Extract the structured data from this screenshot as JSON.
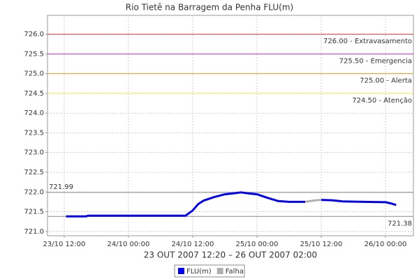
{
  "chart_data": {
    "type": "line",
    "title": "Rio Tietê na Barragem da Penha FLU(m)",
    "x_label": "23 OUT 2007 12:20 – 26 OUT 2007 02:00",
    "x": [
      "23/10 12:20",
      "23/10 16:00",
      "23/10 16:30",
      "24/10 00:00",
      "24/10 08:00",
      "24/10 10:40",
      "24/10 12:00",
      "24/10 13:00",
      "24/10 14:00",
      "24/10 16:00",
      "24/10 18:00",
      "24/10 20:00",
      "24/10 21:00",
      "24/10 22:00",
      "25/10 00:00",
      "25/10 02:00",
      "25/10 04:00",
      "25/10 06:00",
      "25/10 09:00",
      "25/10 11:00",
      "25/10 12:00",
      "25/10 14:00",
      "25/10 16:00",
      "25/10 20:00",
      "26/10 00:00",
      "26/10 01:00",
      "26/10 02:00"
    ],
    "series": [
      {
        "name": "FLU(m)",
        "color": "#0000ee",
        "values": [
          721.38,
          721.38,
          721.4,
          721.4,
          721.4,
          721.4,
          721.53,
          721.69,
          721.78,
          721.87,
          721.94,
          721.97,
          721.99,
          721.97,
          721.94,
          721.85,
          721.77,
          721.75,
          721.75,
          null,
          721.8,
          721.79,
          721.76,
          721.75,
          721.74,
          721.71,
          721.67
        ]
      },
      {
        "name": "Falha",
        "color": "#b0b0b0",
        "values": [
          null,
          null,
          null,
          null,
          null,
          null,
          null,
          null,
          null,
          null,
          null,
          null,
          null,
          null,
          null,
          null,
          null,
          null,
          721.75,
          721.79,
          721.8,
          null,
          null,
          null,
          null,
          null,
          null
        ]
      }
    ],
    "xlim": [
      "23/10 08:53",
      "26/10 05:13"
    ],
    "xticks": [
      "23/10 12:00",
      "24/10 00:00",
      "24/10 12:00",
      "25/10 00:00",
      "25/10 12:00",
      "26/10 00:00"
    ],
    "ylim": [
      720.89,
      726.48
    ],
    "yticks": [
      {
        "value": 721,
        "label": "721.0"
      },
      721.5,
      {
        "value": 722,
        "label": "722.0"
      },
      722.5,
      {
        "value": 723,
        "label": "723.0"
      },
      723.5,
      {
        "value": 724,
        "label": "724.0"
      },
      724.5,
      {
        "value": 725,
        "label": "725.0"
      },
      725.5,
      {
        "value": 726,
        "label": "726.0"
      }
    ],
    "grid": true,
    "thresholds": [
      {
        "value": 726,
        "label": "726.00 - Extravasamento",
        "color": "#cc3333"
      },
      {
        "value": 725.5,
        "label": "725.50 - Emergencia",
        "color": "#cc33cc"
      },
      {
        "value": 725,
        "label": "725.00 - Alerta",
        "color": "#ee9922"
      },
      {
        "value": 724.5,
        "label": "724.50 - Atenção",
        "color": "#eeee44"
      }
    ],
    "max_line": 721.99,
    "min_line": 721.38
  }
}
